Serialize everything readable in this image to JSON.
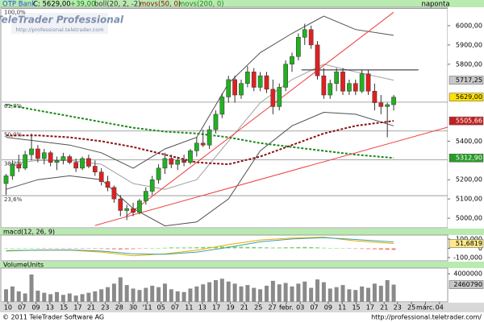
{
  "chart_data": {
    "type": "candlestick",
    "header": {
      "symbol": "OTP Bank",
      "close": "C: 5629,00",
      "change": "+39,00",
      "indicators": [
        "boll(20, 2, -2)",
        "movs(50, 0)",
        "movs(200, 0)"
      ],
      "period": "naponta"
    },
    "xlim": [
      -0.7,
      69.5
    ],
    "xticks": [
      {
        "value": 0.3,
        "label": "10"
      },
      {
        "value": 2.5,
        "label": "07"
      },
      {
        "value": 4.7,
        "label": "09"
      },
      {
        "value": 6.9,
        "label": "13"
      },
      {
        "value": 9.1,
        "label": "15"
      },
      {
        "value": 11.3,
        "label": "17"
      },
      {
        "value": 13.4,
        "label": "21"
      },
      {
        "value": 15.6,
        "label": "23"
      },
      {
        "value": 17.8,
        "label": "28"
      },
      {
        "value": 20.0,
        "label": "30"
      },
      {
        "value": 22.2,
        "label": "'11"
      },
      {
        "value": 24.4,
        "label": "05"
      },
      {
        "value": 26.6,
        "label": "07"
      },
      {
        "value": 28.8,
        "label": "11"
      },
      {
        "value": 30.9,
        "label": "13"
      },
      {
        "value": 33.1,
        "label": "17"
      },
      {
        "value": 35.3,
        "label": "19"
      },
      {
        "value": 37.5,
        "label": "21"
      },
      {
        "value": 39.7,
        "label": "25"
      },
      {
        "value": 41.9,
        "label": "27"
      },
      {
        "value": 44.1,
        "label": "febr."
      },
      {
        "value": 46.3,
        "label": "03"
      },
      {
        "value": 48.5,
        "label": "07"
      },
      {
        "value": 50.7,
        "label": "09"
      },
      {
        "value": 52.9,
        "label": "11"
      },
      {
        "value": 55.1,
        "label": "15"
      },
      {
        "value": 57.3,
        "label": "17"
      },
      {
        "value": 59.5,
        "label": "21"
      },
      {
        "value": 61.6,
        "label": "23"
      },
      {
        "value": 63.8,
        "label": "25"
      },
      {
        "value": 66.0,
        "label": "márc."
      },
      {
        "value": 68.2,
        "label": "04"
      }
    ],
    "main": {
      "ylim": [
        4950,
        6096
      ],
      "yticks": [
        {
          "value": 6000,
          "label": "6000,00"
        },
        {
          "value": 5900,
          "label": "5900,00"
        },
        {
          "value": 5800,
          "label": "5800,00"
        },
        {
          "value": 5400,
          "label": "5400,00"
        },
        {
          "value": 5200,
          "label": "5200,00"
        },
        {
          "value": 5100,
          "label": "5100,00"
        },
        {
          "value": 5000,
          "label": "5000,00"
        }
      ],
      "candles": {
        "up_color": "#22b022",
        "down_color": "#e02020",
        "close_label": "5629,00",
        "open": [
          5180,
          5220,
          5280,
          5260,
          5330,
          5360,
          5310,
          5340,
          5290,
          5300,
          5320,
          5290,
          5260,
          5310,
          5270,
          5240,
          5190,
          5160,
          5100,
          5040,
          5050,
          5030,
          5090,
          5140,
          5200,
          5260,
          5310,
          5280,
          5300,
          5290,
          5350,
          5390,
          5380,
          5460,
          5540,
          5630,
          5720,
          5640,
          5700,
          5760,
          5680,
          5740,
          5670,
          5580,
          5680,
          5800,
          5840,
          5940,
          5980,
          5900,
          5740,
          5640,
          5700,
          5760,
          5660,
          5700,
          5660,
          5750,
          5660,
          5600,
          5580,
          5590
        ],
        "high": [
          5230,
          5300,
          5330,
          5350,
          5440,
          5380,
          5360,
          5350,
          5320,
          5340,
          5330,
          5310,
          5320,
          5330,
          5300,
          5260,
          5220,
          5170,
          5120,
          5070,
          5080,
          5100,
          5160,
          5220,
          5280,
          5340,
          5330,
          5320,
          5330,
          5360,
          5420,
          5460,
          5480,
          5560,
          5650,
          5740,
          5740,
          5720,
          5790,
          5780,
          5760,
          5760,
          5720,
          5700,
          5820,
          5860,
          5960,
          6010,
          6000,
          5920,
          5780,
          5720,
          5780,
          5780,
          5720,
          5720,
          5770,
          5770,
          5700,
          5640,
          5600,
          5640
        ],
        "low": [
          5120,
          5200,
          5240,
          5250,
          5300,
          5290,
          5280,
          5270,
          5250,
          5280,
          5280,
          5240,
          5250,
          5260,
          5220,
          5170,
          5140,
          5080,
          5010,
          4990,
          5010,
          5020,
          5070,
          5120,
          5180,
          5230,
          5260,
          5250,
          5270,
          5280,
          5320,
          5370,
          5360,
          5440,
          5520,
          5600,
          5600,
          5620,
          5680,
          5660,
          5660,
          5650,
          5540,
          5560,
          5660,
          5760,
          5820,
          5900,
          5880,
          5720,
          5620,
          5620,
          5660,
          5640,
          5640,
          5640,
          5650,
          5640,
          5560,
          5540,
          5420,
          5560
        ],
        "close": [
          5220,
          5280,
          5260,
          5330,
          5360,
          5310,
          5340,
          5290,
          5300,
          5320,
          5290,
          5260,
          5310,
          5270,
          5240,
          5190,
          5160,
          5100,
          5040,
          5050,
          5030,
          5090,
          5140,
          5200,
          5260,
          5310,
          5280,
          5300,
          5290,
          5350,
          5390,
          5380,
          5460,
          5540,
          5630,
          5720,
          5640,
          5700,
          5760,
          5680,
          5740,
          5670,
          5580,
          5680,
          5800,
          5840,
          5940,
          5980,
          5900,
          5740,
          5640,
          5700,
          5760,
          5660,
          5700,
          5660,
          5750,
          5660,
          5600,
          5580,
          5590,
          5629
        ]
      },
      "indicator_x": [
        0,
        5,
        10,
        15,
        20,
        25,
        30,
        35,
        40,
        45,
        50,
        55,
        61
      ],
      "indicators": [
        {
          "color": "#505050",
          "dash": false,
          "width": 1,
          "values": [
            5420,
            5400,
            5380,
            5340,
            5260,
            5360,
            5420,
            5700,
            5860,
            5960,
            6050,
            5980,
            5950
          ]
        },
        {
          "color": "#a0a0a0",
          "dash": false,
          "width": 1,
          "values": [
            5280,
            5300,
            5300,
            5280,
            5180,
            5150,
            5200,
            5400,
            5600,
            5720,
            5800,
            5760,
            5717.25
          ],
          "last_label": "5717,25",
          "label_bg": "#c8c8c8",
          "label_fg": "#000000"
        },
        {
          "color": "#505050",
          "dash": false,
          "width": 1,
          "values": [
            5150,
            5200,
            5220,
            5200,
            5050,
            4960,
            4980,
            5100,
            5350,
            5480,
            5550,
            5540,
            5480
          ]
        },
        {
          "color": "#8b1010",
          "dash": true,
          "width": 2,
          "values": [
            5430,
            5430,
            5420,
            5400,
            5370,
            5330,
            5290,
            5280,
            5320,
            5380,
            5440,
            5480,
            5505.66
          ],
          "last_label": "5505,66",
          "label_bg": "#c02020",
          "label_fg": "#ffffff"
        },
        {
          "color": "#1a8a1a",
          "dash": true,
          "width": 2,
          "values": [
            5590,
            5560,
            5530,
            5500,
            5470,
            5450,
            5440,
            5420,
            5390,
            5370,
            5350,
            5330,
            5312.9
          ],
          "last_label": "5312,90",
          "label_bg": "#2a9a2a",
          "label_fg": "#ffffff"
        }
      ],
      "fib_levels": [
        {
          "label": "100,0%",
          "value": 6090
        },
        {
          "label": "61,8%",
          "value": 5603
        },
        {
          "label": "50,0%",
          "value": 5453
        },
        {
          "label": "38,2%",
          "value": 5303
        },
        {
          "label": "23,6%",
          "value": 5117
        }
      ],
      "trend_lines": [
        {
          "color": "#f04040",
          "x": [
            19,
            61
          ],
          "values": [
            5013,
            6070
          ]
        },
        {
          "color": "#f04040",
          "x": [
            14,
            69.5
          ],
          "values": [
            4962,
            5473
          ]
        },
        {
          "color": "#202020",
          "x": [
            46.5,
            64.9
          ],
          "values": [
            5770,
            5770
          ]
        }
      ]
    },
    "macd": {
      "title": "macd(12, 26, 9)",
      "ylim": [
        -135,
        143
      ],
      "yticks": [
        {
          "value": 100,
          "label": "100,000"
        },
        0,
        {
          "value": -100,
          "label": "-100,000"
        }
      ],
      "histogram": [
        2,
        3,
        3,
        2,
        1,
        0,
        -1,
        -2,
        -2,
        -3,
        -3,
        -4,
        -3,
        -4,
        -5,
        -6,
        -8,
        -10,
        -12,
        -10,
        -8,
        -5,
        -2,
        1,
        4,
        6,
        10,
        9,
        9,
        10,
        12,
        14,
        15,
        17,
        19,
        20,
        18,
        16,
        15,
        14,
        12,
        10,
        8,
        9,
        11,
        12,
        14,
        15,
        13,
        10,
        6,
        3,
        1,
        0,
        -2,
        -4,
        -6,
        -8,
        -10,
        -14,
        -16,
        -17
      ],
      "lines": [
        {
          "color": "#e0b000",
          "values": [
            -30,
            -20,
            -20,
            -40,
            -80,
            -60,
            -20,
            40,
            90,
            110,
            120,
            80,
            51.6819
          ],
          "last_label": "51,6819"
        },
        {
          "color": "#40a0a0",
          "values": [
            -25,
            -20,
            -18,
            -30,
            -60,
            -65,
            -40,
            10,
            70,
            100,
            115,
            95,
            68
          ]
        }
      ]
    },
    "volume": {
      "title": "VolumeUnits",
      "ylim": [
        0,
        4820000
      ],
      "yticks": [
        4000000
      ],
      "values": [
        1800000,
        2200000,
        1500000,
        1200000,
        3900000,
        1600000,
        1300000,
        1100000,
        1400000,
        1000000,
        1200000,
        900000,
        1100000,
        1300000,
        1500000,
        1800000,
        2100000,
        2600000,
        3500000,
        2400000,
        1900000,
        1700000,
        2000000,
        2300000,
        2100000,
        2600000,
        1800000,
        1500000,
        1400000,
        1900000,
        2200000,
        2500000,
        2800000,
        3100000,
        3300000,
        2900000,
        2600000,
        2200000,
        2400000,
        2000000,
        1800000,
        2300000,
        3000000,
        2500000,
        2700000,
        2200000,
        2600000,
        2900000,
        2000000,
        3200000,
        2800000,
        1900000,
        2100000,
        2400000,
        1800000,
        1700000,
        2200000,
        2000000,
        2600000,
        2300000,
        3100000,
        2460790
      ],
      "color": "#8a8a8a"
    }
  },
  "watermark": {
    "title": "TeleTrader Professional",
    "url": "http://professional.teletrader.com"
  },
  "footer": {
    "copyright": "© 2011 TeleTrader Software AG",
    "url": "http://professional.teletrader.com/"
  }
}
